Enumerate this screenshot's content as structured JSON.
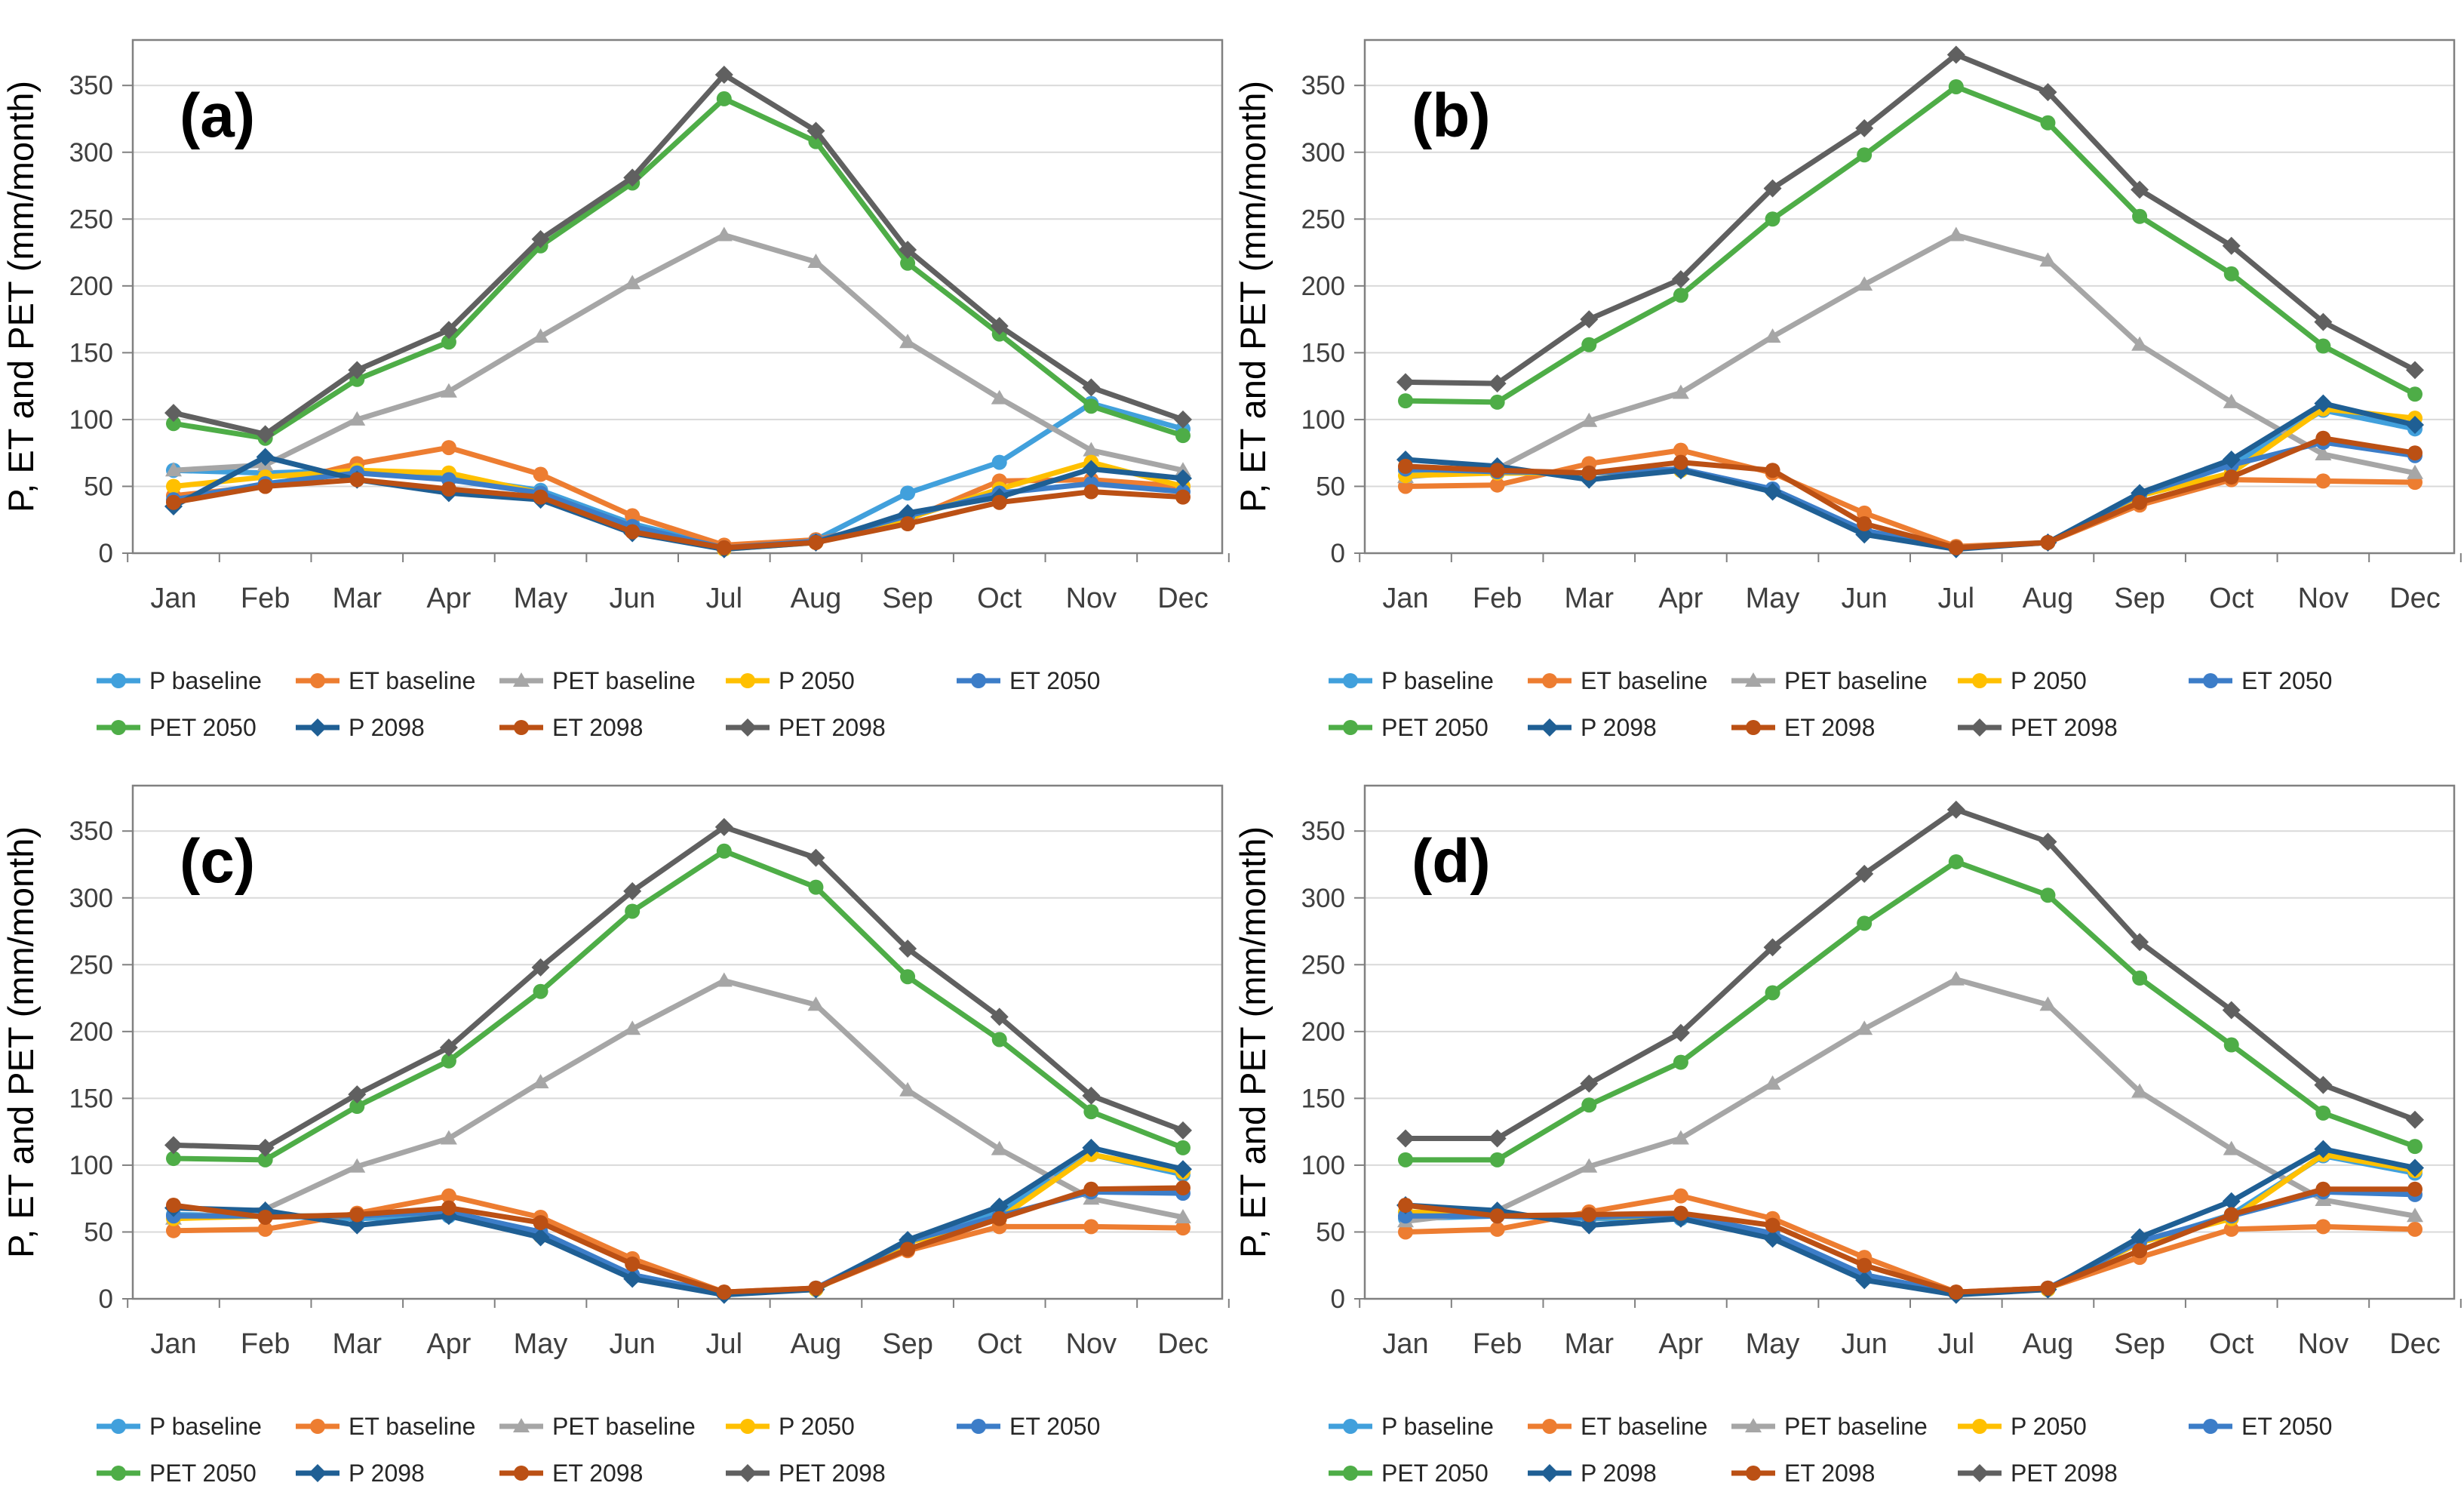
{
  "figure": {
    "y_axis_title": "P, ET and PET (mm/month)",
    "months": [
      "Jan",
      "Feb",
      "Mar",
      "Apr",
      "May",
      "Jun",
      "Jul",
      "Aug",
      "Sep",
      "Oct",
      "Nov",
      "Dec"
    ],
    "y_ticks": [
      0,
      50,
      100,
      150,
      200,
      250,
      300,
      350
    ],
    "colors": {
      "grid": "#D9D9D9",
      "axis": "#808080",
      "tick_text": "#3F3F3F",
      "label_text": "#262626"
    },
    "legend_rows": [
      [
        "P baseline",
        "ET baseline",
        "PET baseline",
        "P 2050",
        "ET 2050"
      ],
      [
        "PET 2050",
        "P 2098",
        "ET 2098",
        "PET 2098"
      ]
    ]
  },
  "chart_data": [
    {
      "type": "line",
      "panel_label": "(a)",
      "xlabel": "",
      "ylabel": "P, ET and PET (mm/month)",
      "ylim": [
        0,
        380
      ],
      "grid": true,
      "legend_position": "bottom",
      "categories": [
        "Jan",
        "Feb",
        "Mar",
        "Apr",
        "May",
        "Jun",
        "Jul",
        "Aug",
        "Sep",
        "Oct",
        "Nov",
        "Dec"
      ],
      "series": [
        {
          "name": "P baseline",
          "color": "#41A0DC",
          "marker": "circle",
          "values": [
            62,
            60,
            62,
            57,
            47,
            22,
            5,
            10,
            45,
            68,
            112,
            93
          ]
        },
        {
          "name": "ET baseline",
          "color": "#ED7D31",
          "marker": "circle",
          "values": [
            43,
            50,
            67,
            79,
            59,
            28,
            6,
            10,
            25,
            54,
            55,
            50
          ]
        },
        {
          "name": "PET baseline",
          "color": "#A6A6A6",
          "marker": "triangle",
          "values": [
            62,
            66,
            100,
            121,
            162,
            202,
            238,
            218,
            158,
            116,
            77,
            62
          ]
        },
        {
          "name": "P 2050",
          "color": "#FFC000",
          "marker": "circle",
          "values": [
            50,
            57,
            62,
            60,
            45,
            18,
            3,
            8,
            26,
            48,
            68,
            50
          ]
        },
        {
          "name": "ET 2050",
          "color": "#3C7DC8",
          "marker": "circle",
          "values": [
            40,
            52,
            60,
            55,
            45,
            20,
            4,
            9,
            28,
            45,
            52,
            46
          ]
        },
        {
          "name": "PET 2050",
          "color": "#4EAD47",
          "marker": "circle",
          "values": [
            97,
            86,
            130,
            158,
            230,
            277,
            340,
            308,
            217,
            164,
            110,
            88
          ]
        },
        {
          "name": "P 2098",
          "color": "#1F5F94",
          "marker": "diamond",
          "values": [
            35,
            72,
            55,
            45,
            40,
            15,
            3,
            8,
            30,
            42,
            63,
            56
          ]
        },
        {
          "name": "ET 2098",
          "color": "#BB5014",
          "marker": "circle",
          "values": [
            38,
            50,
            55,
            48,
            42,
            16,
            4,
            8,
            22,
            38,
            46,
            42
          ]
        },
        {
          "name": "PET 2098",
          "color": "#606060",
          "marker": "diamond",
          "values": [
            105,
            89,
            137,
            167,
            235,
            281,
            358,
            316,
            227,
            170,
            124,
            100
          ]
        }
      ]
    },
    {
      "type": "line",
      "panel_label": "(b)",
      "xlabel": "",
      "ylabel": "P, ET and PET (mm/month)",
      "ylim": [
        0,
        380
      ],
      "grid": true,
      "legend_position": "bottom",
      "categories": [
        "Jan",
        "Feb",
        "Mar",
        "Apr",
        "May",
        "Jun",
        "Jul",
        "Aug",
        "Sep",
        "Oct",
        "Nov",
        "Dec"
      ],
      "series": [
        {
          "name": "P baseline",
          "color": "#41A0DC",
          "marker": "circle",
          "values": [
            62,
            60,
            60,
            62,
            48,
            16,
            4,
            8,
            43,
            66,
            107,
            93
          ]
        },
        {
          "name": "ET baseline",
          "color": "#ED7D31",
          "marker": "circle",
          "values": [
            50,
            51,
            67,
            77,
            60,
            30,
            5,
            8,
            36,
            55,
            54,
            53
          ]
        },
        {
          "name": "PET baseline",
          "color": "#A6A6A6",
          "marker": "triangle",
          "values": [
            57,
            63,
            99,
            120,
            162,
            201,
            238,
            219,
            156,
            113,
            74,
            60
          ]
        },
        {
          "name": "P 2050",
          "color": "#FFC000",
          "marker": "circle",
          "values": [
            58,
            60,
            60,
            62,
            47,
            16,
            4,
            8,
            43,
            60,
            108,
            101
          ]
        },
        {
          "name": "ET 2050",
          "color": "#3C7DC8",
          "marker": "circle",
          "values": [
            63,
            61,
            60,
            63,
            48,
            17,
            4,
            8,
            44,
            66,
            83,
            73
          ]
        },
        {
          "name": "PET 2050",
          "color": "#4EAD47",
          "marker": "circle",
          "values": [
            114,
            113,
            156,
            193,
            250,
            298,
            349,
            322,
            252,
            209,
            155,
            119
          ]
        },
        {
          "name": "P 2098",
          "color": "#1F5F94",
          "marker": "diamond",
          "values": [
            70,
            65,
            55,
            62,
            46,
            14,
            3,
            8,
            45,
            70,
            112,
            96
          ]
        },
        {
          "name": "ET 2098",
          "color": "#BB5014",
          "marker": "circle",
          "values": [
            65,
            62,
            60,
            68,
            62,
            22,
            4,
            8,
            38,
            57,
            86,
            75
          ]
        },
        {
          "name": "PET 2098",
          "color": "#606060",
          "marker": "diamond",
          "values": [
            128,
            127,
            175,
            205,
            273,
            318,
            373,
            345,
            272,
            230,
            173,
            137
          ]
        }
      ]
    },
    {
      "type": "line",
      "panel_label": "(c)",
      "xlabel": "",
      "ylabel": "P, ET and PET (mm/month)",
      "ylim": [
        0,
        380
      ],
      "grid": true,
      "legend_position": "bottom",
      "categories": [
        "Jan",
        "Feb",
        "Mar",
        "Apr",
        "May",
        "Jun",
        "Jul",
        "Aug",
        "Sep",
        "Oct",
        "Nov",
        "Dec"
      ],
      "series": [
        {
          "name": "P baseline",
          "color": "#41A0DC",
          "marker": "circle",
          "values": [
            63,
            62,
            60,
            62,
            48,
            16,
            4,
            7,
            42,
            65,
            108,
            93
          ]
        },
        {
          "name": "ET baseline",
          "color": "#ED7D31",
          "marker": "circle",
          "values": [
            51,
            52,
            64,
            77,
            61,
            30,
            5,
            8,
            36,
            54,
            54,
            53
          ]
        },
        {
          "name": "PET baseline",
          "color": "#A6A6A6",
          "marker": "triangle",
          "values": [
            60,
            67,
            99,
            120,
            162,
            202,
            238,
            220,
            156,
            112,
            75,
            61
          ]
        },
        {
          "name": "P 2050",
          "color": "#FFC000",
          "marker": "circle",
          "values": [
            60,
            62,
            62,
            65,
            47,
            17,
            4,
            7,
            42,
            60,
            108,
            95
          ]
        },
        {
          "name": "ET 2050",
          "color": "#3C7DC8",
          "marker": "circle",
          "values": [
            62,
            62,
            62,
            65,
            50,
            18,
            4,
            8,
            43,
            62,
            80,
            79
          ]
        },
        {
          "name": "PET 2050",
          "color": "#4EAD47",
          "marker": "circle",
          "values": [
            105,
            104,
            144,
            178,
            230,
            290,
            335,
            308,
            241,
            194,
            140,
            113
          ]
        },
        {
          "name": "P 2098",
          "color": "#1F5F94",
          "marker": "diamond",
          "values": [
            68,
            66,
            55,
            62,
            46,
            15,
            3,
            7,
            44,
            69,
            113,
            97
          ]
        },
        {
          "name": "ET 2098",
          "color": "#BB5014",
          "marker": "circle",
          "values": [
            70,
            61,
            63,
            68,
            57,
            26,
            5,
            8,
            37,
            60,
            82,
            83
          ]
        },
        {
          "name": "PET 2098",
          "color": "#606060",
          "marker": "diamond",
          "values": [
            115,
            113,
            153,
            188,
            248,
            305,
            353,
            330,
            262,
            211,
            152,
            126
          ]
        }
      ]
    },
    {
      "type": "line",
      "panel_label": "(d)",
      "xlabel": "",
      "ylabel": "P, ET and PET (mm/month)",
      "ylim": [
        0,
        380
      ],
      "grid": true,
      "legend_position": "bottom",
      "categories": [
        "Jan",
        "Feb",
        "Mar",
        "Apr",
        "May",
        "Jun",
        "Jul",
        "Aug",
        "Sep",
        "Oct",
        "Nov",
        "Dec"
      ],
      "series": [
        {
          "name": "P baseline",
          "color": "#41A0DC",
          "marker": "circle",
          "values": [
            60,
            62,
            60,
            60,
            47,
            16,
            4,
            7,
            42,
            63,
            107,
            94
          ]
        },
        {
          "name": "ET baseline",
          "color": "#ED7D31",
          "marker": "circle",
          "values": [
            50,
            52,
            65,
            77,
            60,
            31,
            5,
            8,
            31,
            52,
            54,
            52
          ]
        },
        {
          "name": "PET baseline",
          "color": "#A6A6A6",
          "marker": "triangle",
          "values": [
            58,
            66,
            99,
            120,
            161,
            202,
            239,
            220,
            155,
            112,
            74,
            62
          ]
        },
        {
          "name": "P 2050",
          "color": "#FFC000",
          "marker": "circle",
          "values": [
            65,
            63,
            61,
            62,
            46,
            17,
            4,
            7,
            42,
            60,
            108,
            96
          ]
        },
        {
          "name": "ET 2050",
          "color": "#3C7DC8",
          "marker": "circle",
          "values": [
            62,
            62,
            61,
            63,
            49,
            18,
            4,
            8,
            43,
            62,
            80,
            78
          ]
        },
        {
          "name": "PET 2050",
          "color": "#4EAD47",
          "marker": "circle",
          "values": [
            104,
            104,
            145,
            177,
            229,
            281,
            327,
            302,
            240,
            190,
            139,
            114
          ]
        },
        {
          "name": "P 2098",
          "color": "#1F5F94",
          "marker": "diamond",
          "values": [
            70,
            66,
            55,
            60,
            45,
            14,
            3,
            7,
            46,
            73,
            112,
            98
          ]
        },
        {
          "name": "ET 2098",
          "color": "#BB5014",
          "marker": "circle",
          "values": [
            70,
            62,
            63,
            64,
            55,
            25,
            5,
            8,
            36,
            63,
            82,
            82
          ]
        },
        {
          "name": "PET 2098",
          "color": "#606060",
          "marker": "diamond",
          "values": [
            120,
            120,
            161,
            199,
            263,
            318,
            366,
            342,
            267,
            216,
            160,
            134
          ]
        }
      ]
    }
  ]
}
